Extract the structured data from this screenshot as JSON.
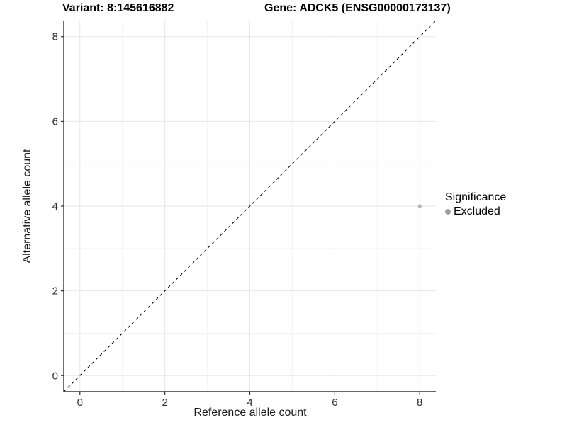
{
  "chart_data": {
    "type": "scatter",
    "title_left": "Variant: 8:145616882",
    "title_right": "Gene: ADCK5 (ENSG00000173137)",
    "xlabel": "Reference allele count",
    "ylabel": "Alternative allele count",
    "xlim": [
      -0.38,
      8.38
    ],
    "ylim": [
      -0.38,
      8.38
    ],
    "x_ticks": [
      0,
      2,
      4,
      6,
      8
    ],
    "y_ticks": [
      0,
      2,
      4,
      6,
      8
    ],
    "x_minor": [
      1,
      3,
      5,
      7
    ],
    "y_minor": [
      1,
      3,
      5,
      7
    ],
    "grid": "on",
    "identity_line": {
      "style": "dashed",
      "color": "#000000"
    },
    "points": [
      {
        "x": 8,
        "y": 4,
        "series": "Excluded",
        "color": "#b3b3b3",
        "radius": 2.6
      }
    ],
    "legend": {
      "position": "right",
      "title": "Significance",
      "items": [
        {
          "label": "Excluded",
          "color": "#9e9e9e"
        }
      ]
    },
    "colors": {
      "grid_major": "#e7e7e7",
      "grid_minor": "#f4f4f4",
      "axis_line": "#333333",
      "tick_mark": "#333333",
      "panel_bg": "#ffffff"
    }
  }
}
